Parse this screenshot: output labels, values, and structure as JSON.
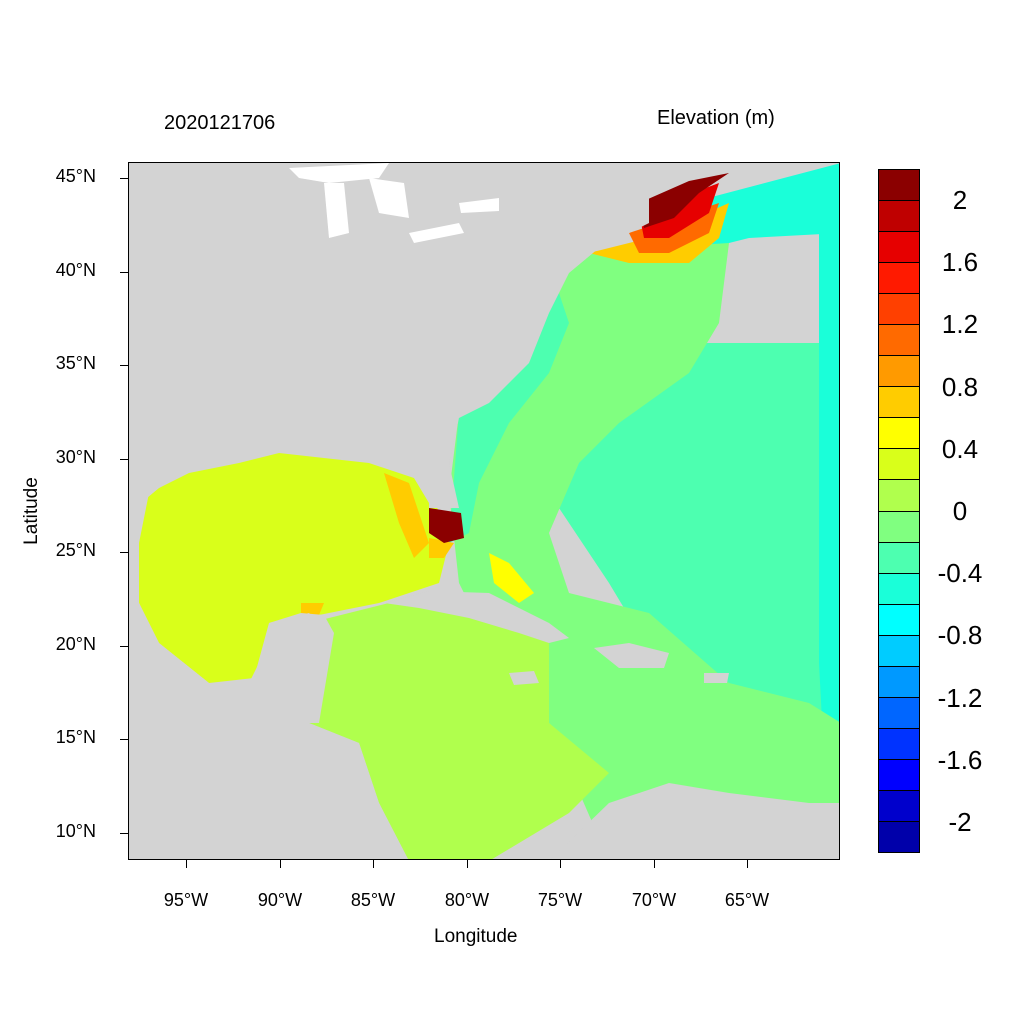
{
  "header": {
    "timestamp": "2020121706",
    "variable": "Elevation (m)"
  },
  "axes": {
    "x_title": "Longitude",
    "y_title": "Latitude",
    "lon_range": [
      -98.0,
      -60.5
    ],
    "lat_range": [
      8.5,
      46.0
    ],
    "x_ticks": [
      {
        "value": -95,
        "label": "95°W"
      },
      {
        "value": -90,
        "label": "90°W"
      },
      {
        "value": -85,
        "label": "85°W"
      },
      {
        "value": -80,
        "label": "80°W"
      },
      {
        "value": -75,
        "label": "75°W"
      },
      {
        "value": -70,
        "label": "70°W"
      },
      {
        "value": -65,
        "label": "65°W"
      }
    ],
    "y_ticks": [
      {
        "value": 45,
        "label": "45°N"
      },
      {
        "value": 40,
        "label": "40°N"
      },
      {
        "value": 35,
        "label": "35°N"
      },
      {
        "value": 30,
        "label": "30°N"
      },
      {
        "value": 25,
        "label": "25°N"
      },
      {
        "value": 20,
        "label": "20°N"
      },
      {
        "value": 15,
        "label": "15°N"
      },
      {
        "value": 10,
        "label": "10°N"
      }
    ]
  },
  "colorbar": {
    "levels_top_to_bottom": [
      "#8b0000",
      "#bf0000",
      "#e60000",
      "#ff1a00",
      "#ff4000",
      "#ff6a00",
      "#ff9a00",
      "#ffcc00",
      "#ffff00",
      "#d9ff1a",
      "#b0ff4d",
      "#80ff80",
      "#4dffb0",
      "#1affd9",
      "#00ffff",
      "#00ccff",
      "#0099ff",
      "#0066ff",
      "#0033ff",
      "#0000ff",
      "#0000cc",
      "#0000aa"
    ],
    "labels": [
      "2",
      "1.6",
      "1.2",
      "0.8",
      "0.4",
      "0",
      "-0.4",
      "-0.8",
      "-1.2",
      "-1.6",
      "-2"
    ]
  },
  "colors": {
    "land": "#d3d3d3",
    "lakes": "#ffffff",
    "gulf": "#d9ff1a",
    "caribbean": "#b0ff4d",
    "atlantic_near": "#80ff80",
    "atlantic_far": "#4dffb0",
    "shelf": "#1affd9",
    "surge_max": "#8b0000"
  }
}
